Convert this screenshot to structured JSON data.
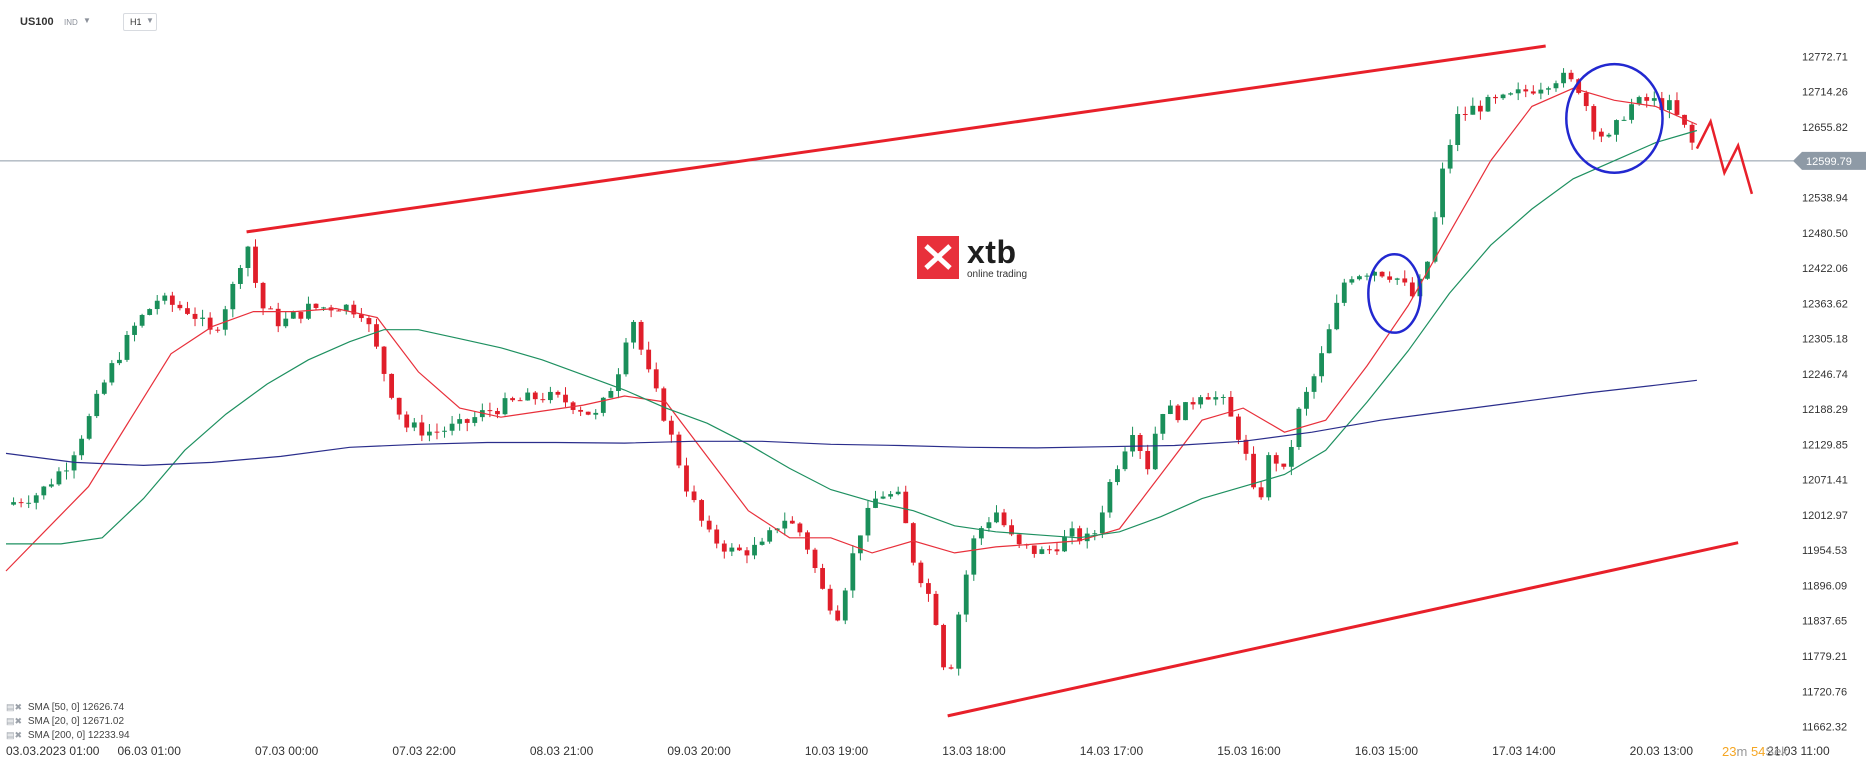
{
  "header": {
    "symbol": "US100",
    "market": "IND",
    "timeframe": "H1"
  },
  "logo": {
    "brand": "xtb",
    "tagline": "online trading"
  },
  "legend": [
    {
      "label": "SMA",
      "params": "[50, 0]",
      "value": "12626.74"
    },
    {
      "label": "SMA",
      "params": "[20, 0]",
      "value": "12671.02"
    },
    {
      "label": "SMA",
      "params": "[200, 0]",
      "value": "12233.94"
    }
  ],
  "timer": {
    "minutes": "23",
    "m_label": "m",
    "seconds": "54",
    "s_label": "Sek"
  },
  "current_price": {
    "value": 12599.79,
    "label": "12599.79"
  },
  "chart_data": {
    "type": "candlestick",
    "title": "",
    "xlabel": "",
    "ylabel": "",
    "ylim": [
      11640,
      12800
    ],
    "y_ticks": [
      "12772.71",
      "12714.26",
      "12655.82",
      "12599.79",
      "12538.94",
      "12480.50",
      "12422.06",
      "12363.62",
      "12305.18",
      "12246.74",
      "12188.29",
      "12129.85",
      "12071.41",
      "12012.97",
      "11954.53",
      "11896.09",
      "11837.65",
      "11779.21",
      "11720.76",
      "11662.32"
    ],
    "x_ticks": [
      {
        "label": "03.03.2023  01:00",
        "t": 0
      },
      {
        "label": "06.03  01:00",
        "t": 1
      },
      {
        "label": "07.03  00:00",
        "t": 2
      },
      {
        "label": "07.03  22:00",
        "t": 3
      },
      {
        "label": "08.03  21:00",
        "t": 4
      },
      {
        "label": "09.03  20:00",
        "t": 5
      },
      {
        "label": "10.03  19:00",
        "t": 6
      },
      {
        "label": "13.03  18:00",
        "t": 7
      },
      {
        "label": "14.03  17:00",
        "t": 8
      },
      {
        "label": "15.03  16:00",
        "t": 9
      },
      {
        "label": "16.03  15:00",
        "t": 10
      },
      {
        "label": "17.03  14:00",
        "t": 11
      },
      {
        "label": "20.03  13:00",
        "t": 12
      },
      {
        "label": "21.03  11:00",
        "t": 13
      }
    ],
    "price_path": [
      [
        0,
        12030
      ],
      [
        0.25,
        12050
      ],
      [
        0.45,
        12100
      ],
      [
        0.6,
        12170
      ],
      [
        0.75,
        12250
      ],
      [
        0.95,
        12330
      ],
      [
        1.1,
        12370
      ],
      [
        1.35,
        12350
      ],
      [
        1.5,
        12310
      ],
      [
        1.65,
        12390
      ],
      [
        1.75,
        12470
      ],
      [
        1.85,
        12360
      ],
      [
        2.0,
        12330
      ],
      [
        2.2,
        12355
      ],
      [
        2.45,
        12360
      ],
      [
        2.6,
        12350
      ],
      [
        2.75,
        12250
      ],
      [
        2.9,
        12160
      ],
      [
        3.1,
        12150
      ],
      [
        3.3,
        12160
      ],
      [
        3.5,
        12185
      ],
      [
        3.7,
        12200
      ],
      [
        3.9,
        12210
      ],
      [
        4.1,
        12200
      ],
      [
        4.3,
        12175
      ],
      [
        4.45,
        12250
      ],
      [
        4.55,
        12350
      ],
      [
        4.65,
        12260
      ],
      [
        4.8,
        12170
      ],
      [
        4.95,
        12060
      ],
      [
        5.1,
        11980
      ],
      [
        5.3,
        11950
      ],
      [
        5.5,
        11960
      ],
      [
        5.65,
        12010
      ],
      [
        5.8,
        11980
      ],
      [
        5.95,
        11880
      ],
      [
        6.05,
        11850
      ],
      [
        6.2,
        11980
      ],
      [
        6.35,
        12050
      ],
      [
        6.5,
        12040
      ],
      [
        6.6,
        11940
      ],
      [
        6.75,
        11860
      ],
      [
        6.85,
        11730
      ],
      [
        6.95,
        11880
      ],
      [
        7.05,
        11980
      ],
      [
        7.2,
        12020
      ],
      [
        7.35,
        11960
      ],
      [
        7.55,
        11950
      ],
      [
        7.75,
        11980
      ],
      [
        7.9,
        11970
      ],
      [
        8.05,
        12080
      ],
      [
        8.2,
        12160
      ],
      [
        8.3,
        12090
      ],
      [
        8.4,
        12190
      ],
      [
        8.55,
        12180
      ],
      [
        8.7,
        12220
      ],
      [
        8.85,
        12200
      ],
      [
        9.0,
        12130
      ],
      [
        9.1,
        12020
      ],
      [
        9.2,
        12120
      ],
      [
        9.3,
        12080
      ],
      [
        9.4,
        12180
      ],
      [
        9.55,
        12260
      ],
      [
        9.75,
        12410
      ],
      [
        9.95,
        12420
      ],
      [
        10.1,
        12410
      ],
      [
        10.25,
        12370
      ],
      [
        10.35,
        12440
      ],
      [
        10.45,
        12580
      ],
      [
        10.55,
        12670
      ],
      [
        10.7,
        12690
      ],
      [
        10.9,
        12700
      ],
      [
        11.1,
        12720
      ],
      [
        11.3,
        12740
      ],
      [
        11.45,
        12720
      ],
      [
        11.55,
        12660
      ],
      [
        11.65,
        12630
      ],
      [
        11.8,
        12690
      ],
      [
        11.95,
        12700
      ],
      [
        12.1,
        12690
      ],
      [
        12.25,
        12640
      ],
      [
        12.3,
        12600
      ]
    ],
    "series": [
      {
        "name": "SMA [20, 0]",
        "color": "#e8303b",
        "points": [
          [
            0,
            11920
          ],
          [
            0.3,
            11990
          ],
          [
            0.6,
            12060
          ],
          [
            0.9,
            12170
          ],
          [
            1.2,
            12280
          ],
          [
            1.5,
            12325
          ],
          [
            1.8,
            12350
          ],
          [
            2.1,
            12350
          ],
          [
            2.4,
            12355
          ],
          [
            2.7,
            12340
          ],
          [
            3.0,
            12250
          ],
          [
            3.3,
            12190
          ],
          [
            3.6,
            12175
          ],
          [
            3.9,
            12185
          ],
          [
            4.2,
            12195
          ],
          [
            4.5,
            12210
          ],
          [
            4.8,
            12200
          ],
          [
            5.1,
            12110
          ],
          [
            5.4,
            12020
          ],
          [
            5.7,
            11975
          ],
          [
            6.0,
            11975
          ],
          [
            6.3,
            11950
          ],
          [
            6.6,
            11970
          ],
          [
            6.9,
            11950
          ],
          [
            7.2,
            11960
          ],
          [
            7.5,
            11965
          ],
          [
            7.8,
            11970
          ],
          [
            8.1,
            11990
          ],
          [
            8.4,
            12080
          ],
          [
            8.7,
            12170
          ],
          [
            9.0,
            12190
          ],
          [
            9.3,
            12150
          ],
          [
            9.6,
            12170
          ],
          [
            9.9,
            12260
          ],
          [
            10.2,
            12360
          ],
          [
            10.5,
            12480
          ],
          [
            10.8,
            12600
          ],
          [
            11.1,
            12690
          ],
          [
            11.4,
            12720
          ],
          [
            11.7,
            12700
          ],
          [
            12.0,
            12690
          ],
          [
            12.3,
            12660
          ]
        ]
      },
      {
        "name": "SMA [50, 0]",
        "color": "#1e9060",
        "points": [
          [
            0,
            11965
          ],
          [
            0.4,
            11965
          ],
          [
            0.7,
            11975
          ],
          [
            1.0,
            12040
          ],
          [
            1.3,
            12120
          ],
          [
            1.6,
            12180
          ],
          [
            1.9,
            12230
          ],
          [
            2.2,
            12270
          ],
          [
            2.5,
            12300
          ],
          [
            2.75,
            12320
          ],
          [
            3.0,
            12320
          ],
          [
            3.3,
            12305
          ],
          [
            3.6,
            12290
          ],
          [
            3.9,
            12270
          ],
          [
            4.2,
            12245
          ],
          [
            4.5,
            12220
          ],
          [
            4.8,
            12190
          ],
          [
            5.1,
            12165
          ],
          [
            5.4,
            12130
          ],
          [
            5.7,
            12090
          ],
          [
            6.0,
            12055
          ],
          [
            6.3,
            12035
          ],
          [
            6.6,
            12020
          ],
          [
            6.9,
            11995
          ],
          [
            7.2,
            11985
          ],
          [
            7.5,
            11980
          ],
          [
            7.8,
            11975
          ],
          [
            8.1,
            11985
          ],
          [
            8.4,
            12010
          ],
          [
            8.7,
            12040
          ],
          [
            9.0,
            12060
          ],
          [
            9.3,
            12080
          ],
          [
            9.6,
            12120
          ],
          [
            9.9,
            12200
          ],
          [
            10.2,
            12285
          ],
          [
            10.5,
            12380
          ],
          [
            10.8,
            12460
          ],
          [
            11.1,
            12520
          ],
          [
            11.4,
            12570
          ],
          [
            11.7,
            12600
          ],
          [
            12.0,
            12630
          ],
          [
            12.3,
            12650
          ]
        ]
      },
      {
        "name": "SMA [200, 0]",
        "color": "#2b2e8c",
        "points": [
          [
            0,
            12115
          ],
          [
            0.5,
            12100
          ],
          [
            1.0,
            12095
          ],
          [
            1.5,
            12100
          ],
          [
            2.0,
            12110
          ],
          [
            2.5,
            12125
          ],
          [
            3.0,
            12130
          ],
          [
            3.5,
            12133
          ],
          [
            4.0,
            12133
          ],
          [
            4.5,
            12132
          ],
          [
            5.0,
            12135
          ],
          [
            5.5,
            12135
          ],
          [
            6.0,
            12130
          ],
          [
            6.5,
            12128
          ],
          [
            7.0,
            12125
          ],
          [
            7.5,
            12124
          ],
          [
            8.0,
            12126
          ],
          [
            8.5,
            12128
          ],
          [
            9.0,
            12135
          ],
          [
            9.5,
            12150
          ],
          [
            10.0,
            12170
          ],
          [
            10.5,
            12185
          ],
          [
            11.0,
            12200
          ],
          [
            11.5,
            12215
          ],
          [
            12.0,
            12228
          ],
          [
            12.3,
            12236
          ]
        ]
      }
    ],
    "annotations": {
      "upper_channel": [
        [
          1.75,
          12482
        ],
        [
          11.2,
          12790
        ]
      ],
      "lower_channel": [
        [
          6.85,
          11680
        ],
        [
          12.6,
          11967
        ]
      ],
      "zigzag": [
        [
          12.3,
          12620
        ],
        [
          12.4,
          12665
        ],
        [
          12.5,
          12580
        ],
        [
          12.6,
          12625
        ],
        [
          12.7,
          12545
        ]
      ],
      "circles": [
        {
          "cx": 10.1,
          "cy": 12380,
          "rx": 0.19,
          "ry": 65
        },
        {
          "cx": 11.7,
          "cy": 12670,
          "rx": 0.35,
          "ry": 90
        }
      ]
    }
  }
}
